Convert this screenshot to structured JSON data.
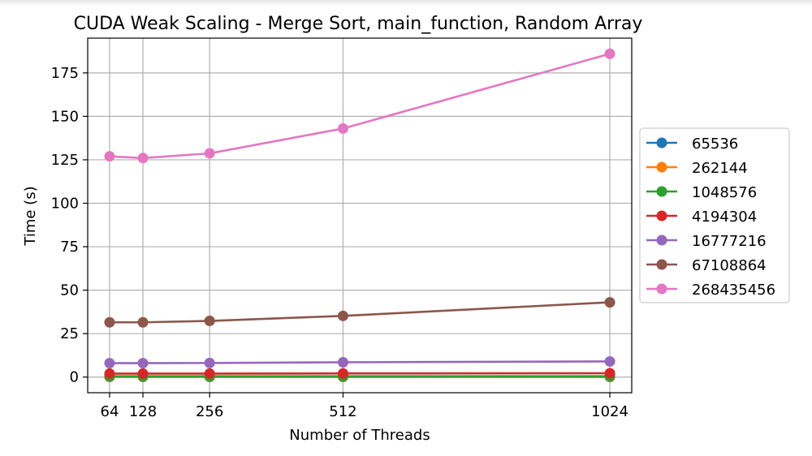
{
  "chart_data": {
    "type": "line",
    "title": "CUDA Weak Scaling - Merge Sort, main_function, Random Array",
    "xlabel": "Number of Threads",
    "ylabel": "Time (s)",
    "x": [
      64,
      128,
      256,
      512,
      1024
    ],
    "xticks": [
      "64",
      "128",
      "256",
      "512",
      "1024"
    ],
    "yticks": [
      "0",
      "25",
      "50",
      "75",
      "100",
      "125",
      "150",
      "175"
    ],
    "xlim": [
      22,
      1066
    ],
    "ylim": [
      -9,
      195
    ],
    "grid": true,
    "legend_position": "right",
    "series": [
      {
        "name": "65536",
        "color": "#1f77b4",
        "values": [
          0.05,
          0.05,
          0.05,
          0.05,
          0.05
        ]
      },
      {
        "name": "262144",
        "color": "#ff7f0e",
        "values": [
          0.2,
          0.2,
          0.2,
          0.2,
          0.2
        ]
      },
      {
        "name": "1048576",
        "color": "#2ca02c",
        "values": [
          0.5,
          0.5,
          0.5,
          0.5,
          0.5
        ]
      },
      {
        "name": "4194304",
        "color": "#d62728",
        "values": [
          2.0,
          2.0,
          2.0,
          2.1,
          2.2
        ]
      },
      {
        "name": "16777216",
        "color": "#9467bd",
        "values": [
          8.0,
          8.0,
          8.1,
          8.5,
          9.0
        ]
      },
      {
        "name": "67108864",
        "color": "#8c564b",
        "values": [
          31.5,
          31.5,
          32.3,
          35.2,
          43.0
        ]
      },
      {
        "name": "268435456",
        "color": "#e377c2",
        "values": [
          127.0,
          126.0,
          128.7,
          143.0,
          186.0
        ]
      }
    ]
  }
}
